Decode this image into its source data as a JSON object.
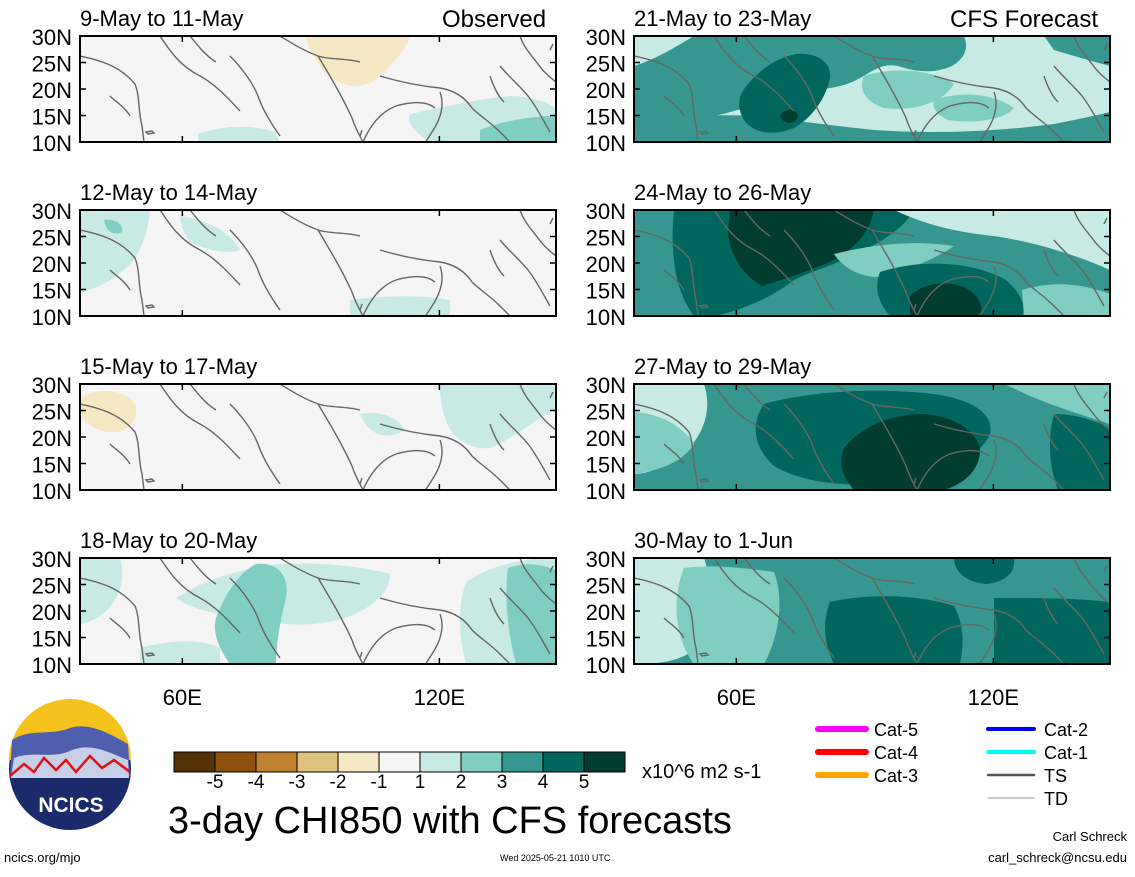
{
  "header": {
    "observed_label": "Observed",
    "forecast_label": "CFS Forecast"
  },
  "lat_labels": [
    "30N",
    "25N",
    "20N",
    "15N",
    "10N"
  ],
  "lon_labels": [
    "60E",
    "120E"
  ],
  "panels": {
    "observed": [
      {
        "date": "9-May to 11-May"
      },
      {
        "date": "12-May to 14-May"
      },
      {
        "date": "15-May to 17-May"
      },
      {
        "date": "18-May to 20-May"
      }
    ],
    "forecast": [
      {
        "date": "21-May to 23-May"
      },
      {
        "date": "24-May to 26-May"
      },
      {
        "date": "27-May to 29-May"
      },
      {
        "date": "30-May to 1-Jun"
      }
    ]
  },
  "colorbar": {
    "colors": [
      "#543005",
      "#8c510a",
      "#bf812d",
      "#dfc27d",
      "#f6e8c3",
      "#f5f5f5",
      "#c7eae5",
      "#80cdc1",
      "#35978f",
      "#01665e",
      "#003c30"
    ],
    "tick_labels": [
      "-5",
      "-4",
      "-3",
      "-2",
      "-1",
      "1",
      "2",
      "3",
      "4",
      "5"
    ],
    "units": "x10^6 m2 s-1"
  },
  "legend": {
    "left": [
      {
        "label": "Cat-5",
        "color": "#ff00ff"
      },
      {
        "label": "Cat-4",
        "color": "#ff0000"
      },
      {
        "label": "Cat-3",
        "color": "#ffa500"
      }
    ],
    "right": [
      {
        "label": "Cat-2",
        "color": "#0000ff"
      },
      {
        "label": "Cat-1",
        "color": "#00ffff"
      },
      {
        "label": "TS",
        "color": "#555555"
      },
      {
        "label": "TD",
        "color": "#aaaaaa"
      }
    ]
  },
  "logo": {
    "text": "NCICS"
  },
  "main_title": "3-day CHI850 with CFS forecasts",
  "footer": {
    "url": "ncics.org/mjo",
    "timestamp": "Wed 2025-05-21 1010 UTC",
    "author": "Carl Schreck",
    "email": "carl_schreck@ncsu.edu"
  }
}
